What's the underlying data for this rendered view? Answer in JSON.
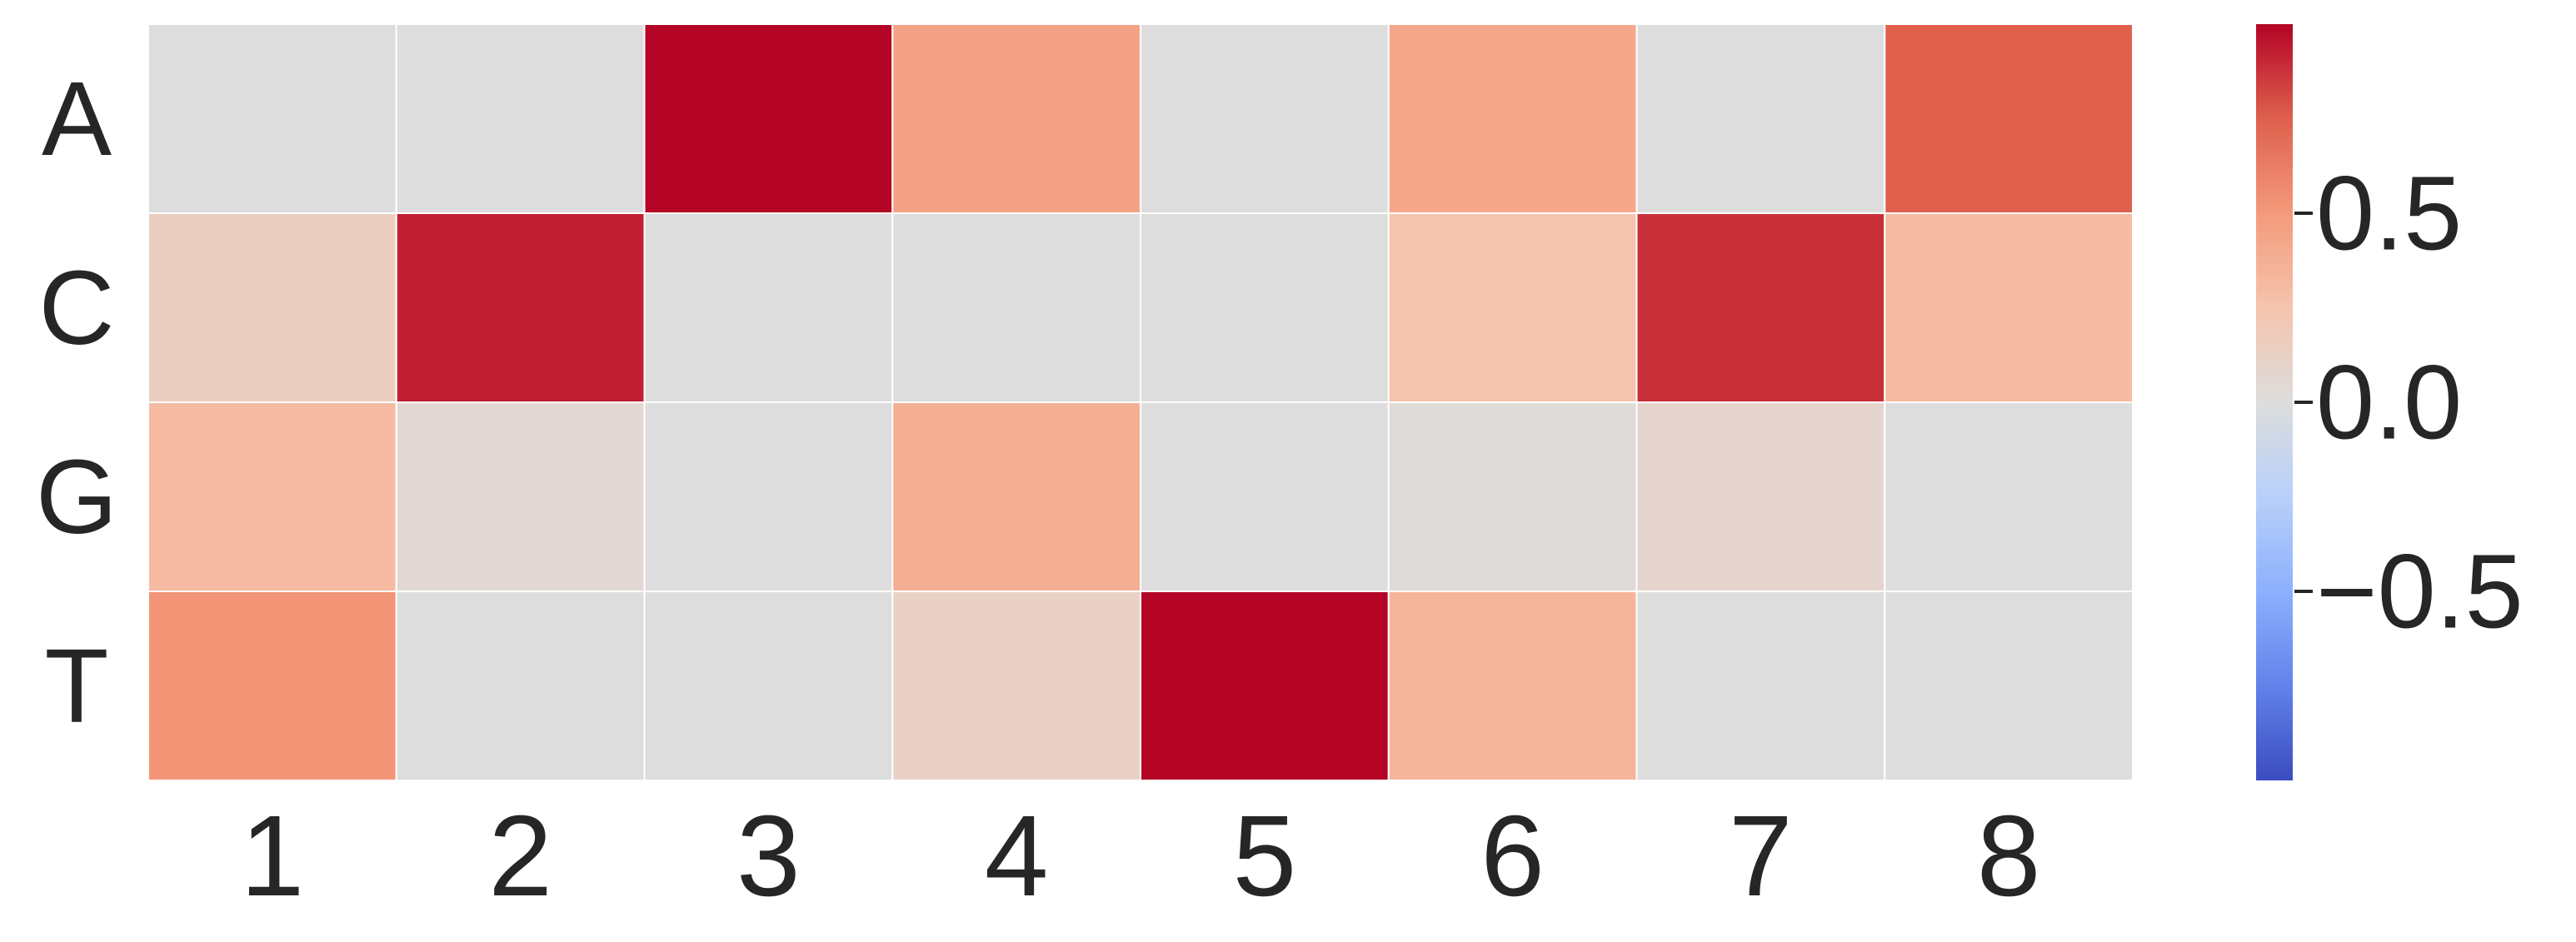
{
  "chart_data": {
    "type": "heatmap",
    "title": "",
    "xlabel": "",
    "ylabel": "",
    "x_categories": [
      "1",
      "2",
      "3",
      "4",
      "5",
      "6",
      "7",
      "8"
    ],
    "y_categories": [
      "A",
      "C",
      "G",
      "T"
    ],
    "values": [
      [
        0.0,
        0.0,
        1.0,
        0.45,
        0.0,
        0.42,
        0.0,
        0.75
      ],
      [
        0.15,
        0.93,
        0.0,
        0.0,
        0.0,
        0.25,
        0.88,
        0.3
      ],
      [
        0.3,
        0.05,
        0.0,
        0.38,
        0.0,
        0.02,
        0.08,
        0.0
      ],
      [
        0.52,
        0.0,
        0.0,
        0.12,
        1.0,
        0.34,
        0.0,
        0.0
      ]
    ],
    "colormap": "coolwarm",
    "vmin": -1.0,
    "vmax": 1.0,
    "colorbar": {
      "ticks": [
        0.5,
        0.0,
        -0.5
      ],
      "tick_labels": [
        "0.5",
        "0.0",
        "−0.5"
      ]
    },
    "cell_border_color": "#ffffff",
    "grid": false
  }
}
